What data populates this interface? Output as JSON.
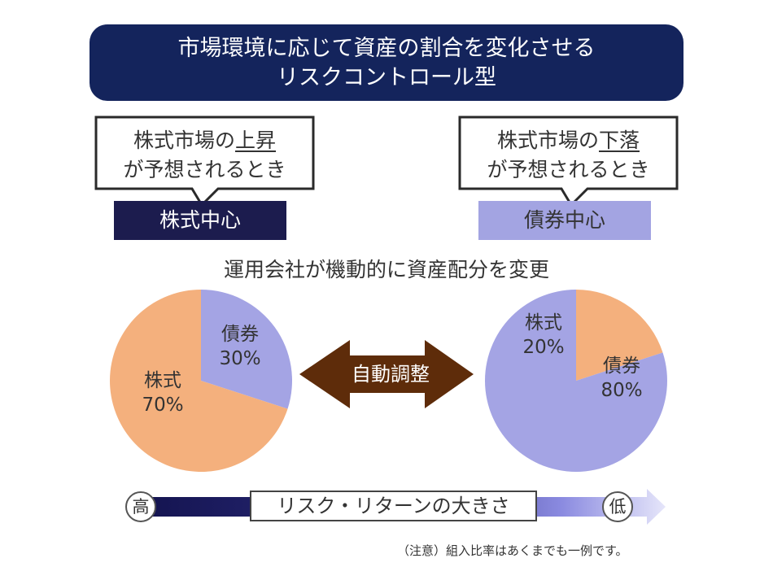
{
  "header": {
    "line1": "市場環境に応じて資産の割合を変化させる",
    "line2": "リスクコントロール型"
  },
  "left_scenario": {
    "bubble_prefix": "株式市場の",
    "bubble_emph": "上昇",
    "bubble_line2": "が予想されるとき",
    "box_label": "株式中心",
    "box_color": "#1c1c4e"
  },
  "right_scenario": {
    "bubble_prefix": "株式市場の",
    "bubble_emph": "下落",
    "bubble_line2": "が予想されるとき",
    "box_label": "債券中心",
    "box_color": "#a3a4e2"
  },
  "subtitle": "運用会社が機動的に資産配分を変更",
  "arrow_label": "自動調整",
  "chart_data": [
    {
      "type": "pie",
      "categories": [
        "債券",
        "株式"
      ],
      "values": [
        30,
        70
      ],
      "value_labels": [
        "30%",
        "70%"
      ],
      "colors": [
        "#a4a4e4",
        "#f4b07d"
      ]
    },
    {
      "type": "pie",
      "categories": [
        "株式",
        "債券"
      ],
      "values": [
        20,
        80
      ],
      "value_labels": [
        "20%",
        "80%"
      ],
      "colors": [
        "#f4b07d",
        "#a4a4e4"
      ]
    }
  ],
  "risk_scale": {
    "high": "高",
    "label": "リスク・リターンの大きさ",
    "low": "低"
  },
  "note": "（注意）組入比率はあくまでも一例です。",
  "colors": {
    "navy": "#14245c",
    "arrow_brown": "#5e2c0a",
    "stock_orange": "#f4b07d",
    "bond_lavender": "#a4a4e4"
  }
}
